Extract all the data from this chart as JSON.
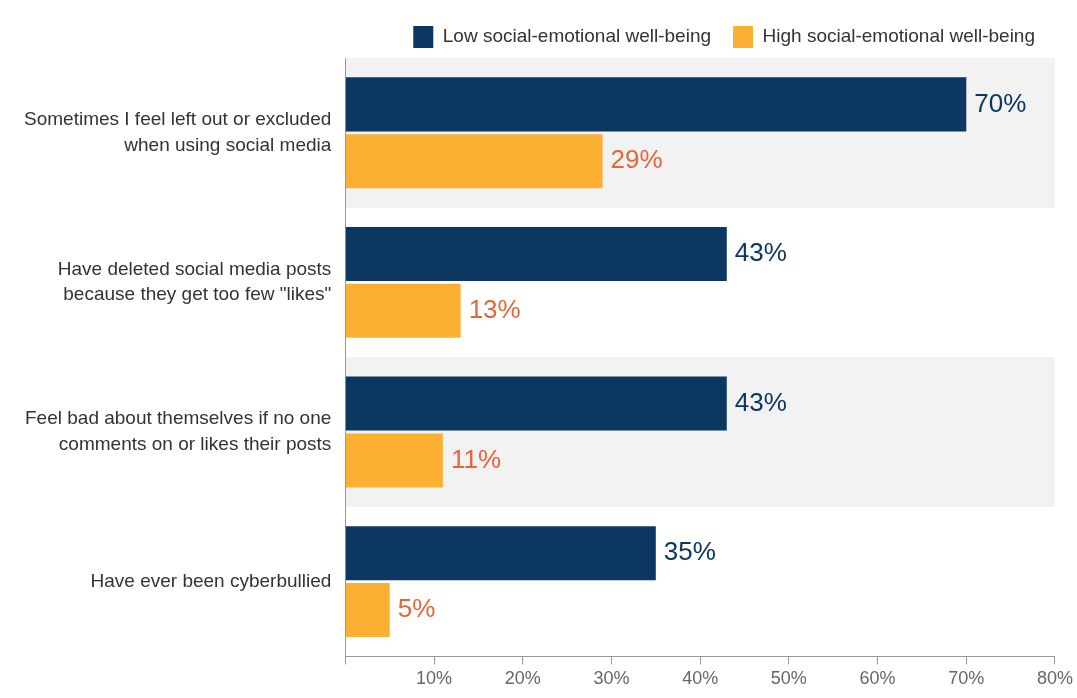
{
  "chart_data": {
    "type": "bar",
    "orientation": "horizontal",
    "categories": [
      "Sometimes I feel left out or excluded when using social media",
      "Have deleted social media posts because they get too few \"likes\"",
      "Feel bad about themselves if no one comments on or likes their posts",
      "Have ever been cyberbullied"
    ],
    "series": [
      {
        "name": "Low social-emotional well-being",
        "color": "#0b3760",
        "values": [
          70,
          43,
          43,
          35
        ],
        "value_labels": [
          "70%",
          "43%",
          "43%",
          "35%"
        ]
      },
      {
        "name": "High social-emotional well-being",
        "color": "#fbb034",
        "values": [
          29,
          13,
          11,
          5
        ],
        "value_labels": [
          "29%",
          "13%",
          "11%",
          "5%"
        ]
      }
    ],
    "xlim": [
      0,
      80
    ],
    "xticks": [
      {
        "value": 0,
        "label": null
      },
      {
        "value": 10,
        "label": "10%"
      },
      {
        "value": 20,
        "label": "20%"
      },
      {
        "value": 30,
        "label": "30%"
      },
      {
        "value": 40,
        "label": "40%"
      },
      {
        "value": 50,
        "label": "50%"
      },
      {
        "value": 60,
        "label": "60%"
      },
      {
        "value": 70,
        "label": "70%"
      },
      {
        "value": 80,
        "label": "80%"
      }
    ],
    "grid": false,
    "legend": "top right"
  }
}
